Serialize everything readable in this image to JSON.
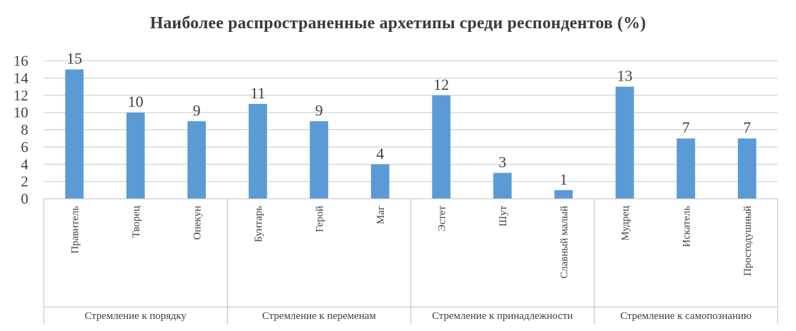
{
  "chart_data": {
    "type": "bar",
    "title": "Наиболее распространенные  архетипы среди респондентов (%)",
    "xlabel": "",
    "ylabel": "",
    "ylim": [
      0,
      16
    ],
    "yticks": [
      0,
      2,
      4,
      6,
      8,
      10,
      12,
      14,
      16
    ],
    "grid": true,
    "legend": "none",
    "bar_color": "#5b9bd5",
    "categories": [
      "Правитель",
      "Творец",
      "Опекун",
      "Бунтарь",
      "Герой",
      "Маг",
      "Эстет",
      "Шут",
      "Славный малый",
      "Мудрец",
      "Искатель",
      "Простодушный"
    ],
    "values": [
      15,
      10,
      9,
      11,
      9,
      4,
      12,
      3,
      1,
      13,
      7,
      7
    ],
    "groups": [
      {
        "label": "Стремление к порядку",
        "count": 3
      },
      {
        "label": "Стремление к переменам",
        "count": 3
      },
      {
        "label": "Стремление к принадлежности",
        "count": 3
      },
      {
        "label": "Стремление к самопознанию",
        "count": 3
      }
    ]
  }
}
